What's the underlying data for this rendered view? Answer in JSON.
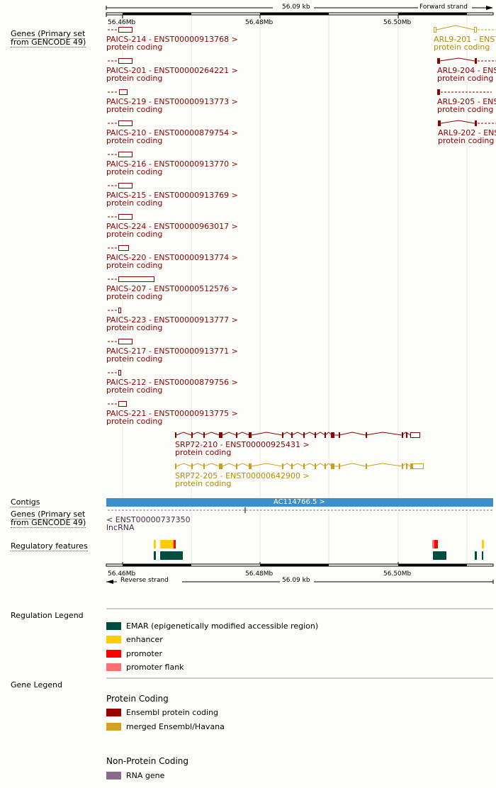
{
  "colors": {
    "ensembl_protein": "#8b0000",
    "merged": "#c8a020",
    "rna_gene": "#8a6a8a",
    "contig": "#3c8fc8",
    "emar": "#004d40",
    "enhancer": "#ffcc00",
    "promoter": "#ff0000",
    "promoter_flank": "#ff7070",
    "gridline": "#e4e4e4"
  },
  "ruler_top": {
    "span": "56.09 kb",
    "strand": "Forward strand",
    "ticks": [
      "56.46Mb",
      "56.48Mb",
      "56.50Mb"
    ]
  },
  "ruler_bottom": {
    "span": "56.09 kb",
    "strand": "Reverse strand",
    "ticks": [
      "56.46Mb",
      "56.48Mb",
      "56.50Mb"
    ]
  },
  "tracks": {
    "genes_top": "Genes (Primary set from GENCODE 49)",
    "contigs": "Contigs",
    "genes_bottom": "Genes (Primary set from GENCODE 49)",
    "regulatory": "Regulatory features"
  },
  "transcripts": [
    {
      "name": "PAICS-214 - ENST00000913768 >",
      "biotype": "protein coding",
      "color": "ensembl_protein"
    },
    {
      "name": "PAICS-201 - ENST00000264221 >",
      "biotype": "protein coding",
      "color": "ensembl_protein"
    },
    {
      "name": "PAICS-219 - ENST00000913773 >",
      "biotype": "protein coding",
      "color": "ensembl_protein"
    },
    {
      "name": "PAICS-210 - ENST00000879754 >",
      "biotype": "protein coding",
      "color": "ensembl_protein"
    },
    {
      "name": "PAICS-216 - ENST00000913770 >",
      "biotype": "protein coding",
      "color": "ensembl_protein"
    },
    {
      "name": "PAICS-215 - ENST00000913769 >",
      "biotype": "protein coding",
      "color": "ensembl_protein"
    },
    {
      "name": "PAICS-224 - ENST00000963017 >",
      "biotype": "protein coding",
      "color": "ensembl_protein"
    },
    {
      "name": "PAICS-220 - ENST00000913774 >",
      "biotype": "protein coding",
      "color": "ensembl_protein"
    },
    {
      "name": "PAICS-207 - ENST00000512576 >",
      "biotype": "protein coding",
      "color": "ensembl_protein"
    },
    {
      "name": "PAICS-223 - ENST00000913777 >",
      "biotype": "protein coding",
      "color": "ensembl_protein"
    },
    {
      "name": "PAICS-217 - ENST00000913771 >",
      "biotype": "protein coding",
      "color": "ensembl_protein"
    },
    {
      "name": "PAICS-212 - ENST00000879756 >",
      "biotype": "protein coding",
      "color": "ensembl_protein"
    },
    {
      "name": "PAICS-221 - ENST00000913775 >",
      "biotype": "protein coding",
      "color": "ensembl_protein"
    },
    {
      "name": "SRP72-210 - ENST00000925431 >",
      "biotype": "protein coding",
      "color": "ensembl_protein"
    },
    {
      "name": "SRP72-205 - ENST00000642900 >",
      "biotype": "protein coding",
      "color": "merged"
    }
  ],
  "arl9": [
    {
      "name": "ARL9-201 - ENST",
      "biotype": "protein coding",
      "color": "merged"
    },
    {
      "name": "ARL9-204 - ENS",
      "biotype": "protein coding",
      "color": "ensembl_protein"
    },
    {
      "name": "ARL9-205 - ENS",
      "biotype": "protein coding",
      "color": "ensembl_protein"
    },
    {
      "name": "ARL9-202 - ENS",
      "biotype": "protein coding",
      "color": "ensembl_protein"
    }
  ],
  "contig": {
    "label": "AC114766.5 >"
  },
  "lncrna": {
    "name": "< ENST00000737350",
    "biotype": "lncRNA"
  },
  "legend": {
    "regulation_title": "Regulation Legend",
    "regulation_items": [
      {
        "label": "EMAR (epigenetically modified accessible region)",
        "color": "emar"
      },
      {
        "label": "enhancer",
        "color": "enhancer"
      },
      {
        "label": "promoter",
        "color": "promoter"
      },
      {
        "label": "promoter flank",
        "color": "promoter_flank"
      }
    ],
    "gene_title": "Gene Legend",
    "protein_coding_heading": "Protein Coding",
    "protein_items": [
      {
        "label": "Ensembl protein coding",
        "color": "ensembl_protein"
      },
      {
        "label": "merged Ensembl/Havana",
        "color": "merged"
      }
    ],
    "non_protein_heading": "Non-Protein Coding",
    "non_protein_items": [
      {
        "label": "RNA gene",
        "color": "rna_gene"
      }
    ]
  }
}
